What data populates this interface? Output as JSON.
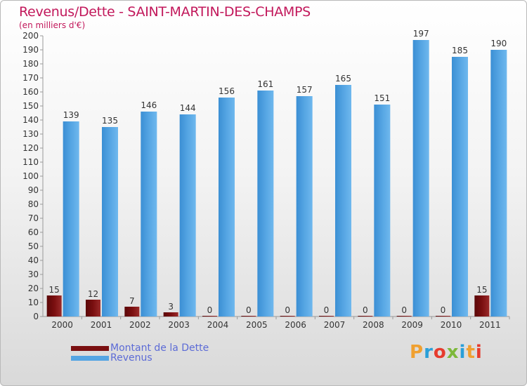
{
  "title": "Revenus/Dette - SAINT-MARTIN-DES-CHAMPS",
  "subtitle": "(en milliers d'€)",
  "logo": {
    "letters": [
      "P",
      "r",
      "o",
      "x",
      "i",
      "t",
      "i"
    ],
    "colors": [
      "#f0a030",
      "#2a9fd8",
      "#e63c2e",
      "#7db83a",
      "#2a9fd8",
      "#f0a030",
      "#e63c2e"
    ]
  },
  "colors": {
    "dette": "#7a0f10",
    "revenus": "#55a5e3",
    "title": "#c2185b",
    "legend_text": "#5c6bd6"
  },
  "chart_data": {
    "type": "bar",
    "categories": [
      "2000",
      "2001",
      "2002",
      "2003",
      "2004",
      "2005",
      "2006",
      "2007",
      "2008",
      "2009",
      "2010",
      "2011"
    ],
    "series": [
      {
        "name": "Montant de la Dette",
        "values": [
          15,
          12,
          7,
          3,
          0,
          0,
          0,
          0,
          0,
          0,
          0,
          15
        ]
      },
      {
        "name": "Revenus",
        "values": [
          139,
          135,
          146,
          144,
          156,
          161,
          157,
          165,
          151,
          197,
          185,
          190
        ]
      }
    ],
    "yticks": [
      0,
      10,
      20,
      30,
      40,
      50,
      60,
      70,
      80,
      90,
      100,
      110,
      120,
      130,
      140,
      150,
      160,
      170,
      180,
      190,
      200
    ],
    "ylim": [
      0,
      200
    ],
    "grid": false,
    "legend_position": "bottom-left"
  }
}
